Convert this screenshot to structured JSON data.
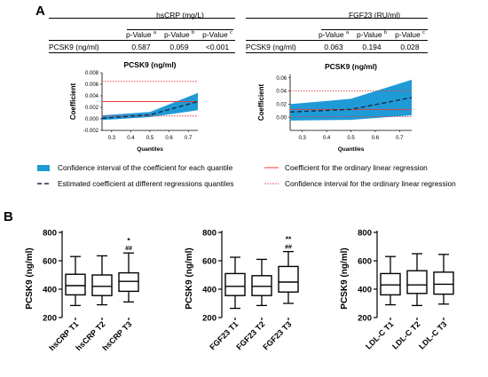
{
  "panel_a": {
    "letter": "A",
    "tables": [
      {
        "header": "hsCRP (mg/L)",
        "row_label": "PCSK9 (ng/ml)",
        "col_labels": [
          "p-Value",
          "p-Value",
          "p-Value"
        ],
        "col_sups": [
          "a",
          "b",
          "c"
        ],
        "values": [
          "0.587",
          "0.059",
          "<0.001"
        ]
      },
      {
        "header": "FGF23 (RU/ml)",
        "row_label": "PCSK9 (ng/ml)",
        "col_labels": [
          "p-Value",
          "p-Value",
          "p-Value"
        ],
        "col_sups": [
          "a",
          "b",
          "c"
        ],
        "values": [
          "0.063",
          "0.194",
          "0.028"
        ]
      }
    ],
    "legend": {
      "ci_quantile": "Confidence interval of the coefficient for each quantile",
      "estimated": "Estimated coefficient  at different  regressions quantiles",
      "ols_coef": "Coefficient for the ordinary linear regression",
      "ols_ci": "Confidence interval for the ordinary linear regression",
      "band_color": "#1e9bd7",
      "red_color": "#e83b3b"
    }
  },
  "panel_b": {
    "letter": "B"
  },
  "chart_data": [
    {
      "type": "area",
      "title": "PCSK9 (ng/ml)",
      "xlabel": "Quantiles",
      "ylabel": "Coefficient",
      "x": [
        0.25,
        0.5,
        0.75
      ],
      "xticks": [
        "0.3",
        "0.4",
        "0.5",
        "0.6",
        "0.7"
      ],
      "yticks": [
        "-0.002",
        "0.000",
        "0.002",
        "0.004",
        "0.006",
        "0.008"
      ],
      "ylim": [
        -0.002,
        0.008
      ],
      "xlim": [
        0.25,
        0.75
      ],
      "series": [
        {
          "name": "Confidence interval of the coefficient for each quantile",
          "lower": [
            -0.0002,
            0.0003,
            0.0015
          ],
          "upper": [
            0.0006,
            0.0012,
            0.0045
          ]
        },
        {
          "name": "Estimated coefficient  at different  regressions quantiles",
          "values": [
            0.0001,
            0.0007,
            0.003
          ]
        }
      ],
      "ols": {
        "coef": 0.003,
        "ci": [
          0.0005,
          0.0065
        ]
      }
    },
    {
      "type": "area",
      "title": "PCSK9 (ng/ml)",
      "xlabel": "Quantiles",
      "ylabel": "Coefficient",
      "x": [
        0.25,
        0.5,
        0.75
      ],
      "xticks": [
        "0.3",
        "0.4",
        "0.5",
        "0.6",
        "0.7"
      ],
      "yticks": [
        "0.00",
        "0.02",
        "0.04",
        "0.06"
      ],
      "ylim": [
        -0.02,
        0.065
      ],
      "xlim": [
        0.25,
        0.75
      ],
      "series": [
        {
          "name": "Confidence interval of the coefficient for each quantile",
          "lower": [
            -0.005,
            -0.004,
            0.003
          ],
          "upper": [
            0.02,
            0.028,
            0.057
          ]
        },
        {
          "name": "Estimated coefficient  at different  regressions quantiles",
          "values": [
            0.008,
            0.012,
            0.03
          ]
        }
      ],
      "ols": {
        "coef": 0.012,
        "ci": [
          0.001,
          0.04
        ]
      }
    },
    {
      "type": "boxplot",
      "ylabel": "PCSK9 (ng/ml)",
      "yticks": [
        "200",
        "400",
        "600",
        "800"
      ],
      "ylim": [
        200,
        800
      ],
      "categories": [
        "hsCRP T1",
        "hsCRP T2",
        "hsCRP T3"
      ],
      "boxes": [
        {
          "whislo": 285,
          "q1": 360,
          "med": 425,
          "q3": 505,
          "whishi": 630
        },
        {
          "whislo": 290,
          "q1": 355,
          "med": 420,
          "q3": 500,
          "whishi": 635
        },
        {
          "whislo": 310,
          "q1": 385,
          "med": 455,
          "q3": 515,
          "whishi": 655
        }
      ],
      "annotations": [
        {
          "category": "hsCRP T3",
          "lines": [
            "*",
            "##"
          ]
        }
      ]
    },
    {
      "type": "boxplot",
      "ylabel": "PCSK9 (ng/ml)",
      "yticks": [
        "200",
        "400",
        "600",
        "800"
      ],
      "ylim": [
        200,
        800
      ],
      "categories": [
        "FGF23 T1",
        "FGF23 T2",
        "FGF23 T3"
      ],
      "boxes": [
        {
          "whislo": 265,
          "q1": 355,
          "med": 420,
          "q3": 510,
          "whishi": 625
        },
        {
          "whislo": 285,
          "q1": 355,
          "med": 420,
          "q3": 495,
          "whishi": 610
        },
        {
          "whislo": 300,
          "q1": 380,
          "med": 450,
          "q3": 560,
          "whishi": 665
        }
      ],
      "annotations": [
        {
          "category": "FGF23 T3",
          "lines": [
            "**",
            "##"
          ]
        }
      ]
    },
    {
      "type": "boxplot",
      "ylabel": "PCSK9 (ng/ml)",
      "yticks": [
        "200",
        "400",
        "600",
        "800"
      ],
      "ylim": [
        200,
        800
      ],
      "categories": [
        "LDL-C T1",
        "LDL-C T2",
        "LDL-C T3"
      ],
      "boxes": [
        {
          "whislo": 290,
          "q1": 360,
          "med": 430,
          "q3": 510,
          "whishi": 630
        },
        {
          "whislo": 285,
          "q1": 370,
          "med": 430,
          "q3": 530,
          "whishi": 650
        },
        {
          "whislo": 295,
          "q1": 365,
          "med": 435,
          "q3": 520,
          "whishi": 645
        }
      ],
      "annotations": []
    }
  ]
}
